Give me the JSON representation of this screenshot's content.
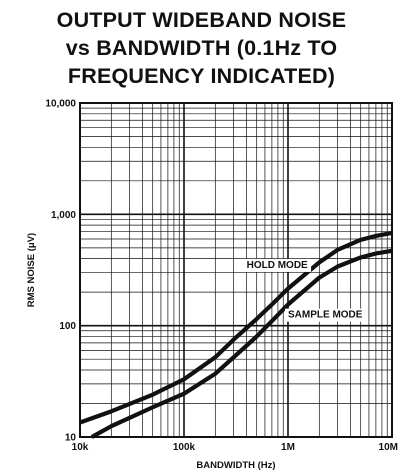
{
  "chart_data": {
    "type": "line",
    "title": [
      "OUTPUT WIDEBAND NOISE",
      "vs BANDWIDTH (0.1Hz TO",
      "FREQUENCY INDICATED)"
    ],
    "xlabel": "BANDWIDTH (Hz)",
    "ylabel": "RMS NOISE (μV)",
    "xscale": "log",
    "yscale": "log",
    "xlim": [
      10000,
      10000000
    ],
    "ylim": [
      10,
      10000
    ],
    "grid": true,
    "x_ticks": [
      {
        "value": 10000,
        "label": "10k"
      },
      {
        "value": 100000,
        "label": "100k"
      },
      {
        "value": 1000000,
        "label": "1M"
      },
      {
        "value": 10000000,
        "label": "10M"
      }
    ],
    "y_ticks": [
      {
        "value": 10,
        "label": "10"
      },
      {
        "value": 100,
        "label": "100"
      },
      {
        "value": 1000,
        "label": "1,000"
      },
      {
        "value": 10000,
        "label": "10,000"
      }
    ],
    "series": [
      {
        "name": "HOLD MODE",
        "color": "#111111",
        "points": [
          [
            10000,
            13.5
          ],
          [
            20000,
            17
          ],
          [
            50000,
            24
          ],
          [
            100000,
            33
          ],
          [
            200000,
            52
          ],
          [
            300000,
            75
          ],
          [
            500000,
            115
          ],
          [
            700000,
            155
          ],
          [
            1000000,
            215
          ],
          [
            2000000,
            370
          ],
          [
            3000000,
            480
          ],
          [
            5000000,
            590
          ],
          [
            7000000,
            640
          ],
          [
            10000000,
            680
          ]
        ]
      },
      {
        "name": "SAMPLE MODE",
        "color": "#111111",
        "points": [
          [
            13000,
            10
          ],
          [
            20000,
            12.5
          ],
          [
            50000,
            18.5
          ],
          [
            100000,
            24.5
          ],
          [
            200000,
            37
          ],
          [
            300000,
            52
          ],
          [
            500000,
            80
          ],
          [
            700000,
            110
          ],
          [
            1000000,
            155
          ],
          [
            2000000,
            270
          ],
          [
            3000000,
            340
          ],
          [
            5000000,
            410
          ],
          [
            7000000,
            445
          ],
          [
            10000000,
            470
          ]
        ]
      }
    ]
  }
}
